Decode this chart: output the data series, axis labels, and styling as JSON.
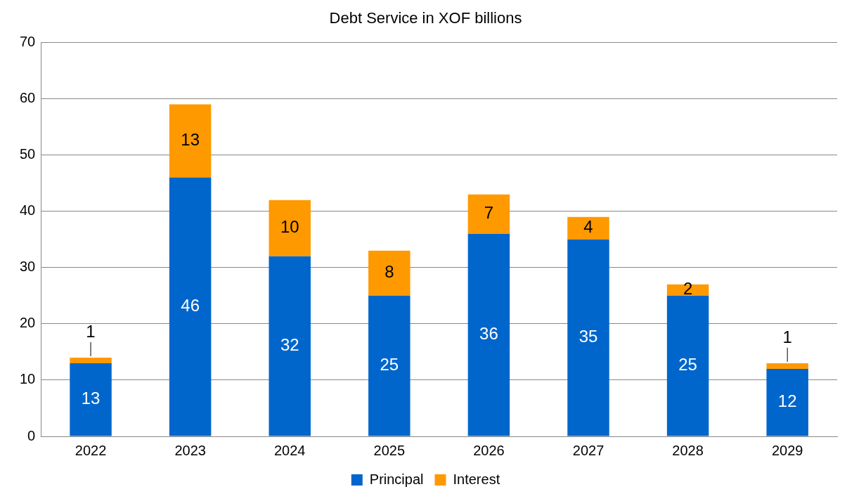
{
  "chart_data": {
    "type": "bar",
    "title": "Debt Service in XOF billions",
    "categories": [
      "2022",
      "2023",
      "2024",
      "2025",
      "2026",
      "2027",
      "2028",
      "2029"
    ],
    "series": [
      {
        "name": "Principal",
        "color": "#0066cc",
        "values": [
          13,
          46,
          32,
          25,
          36,
          35,
          25,
          12
        ]
      },
      {
        "name": "Interest",
        "color": "#ff9900",
        "values": [
          1,
          13,
          10,
          8,
          7,
          4,
          2,
          1
        ]
      }
    ],
    "stacked": true,
    "ylim": [
      0,
      70
    ],
    "yticks": [
      0,
      10,
      20,
      30,
      40,
      50,
      60,
      70
    ],
    "grid": "y",
    "legend": "bottom",
    "data_labels": true
  }
}
